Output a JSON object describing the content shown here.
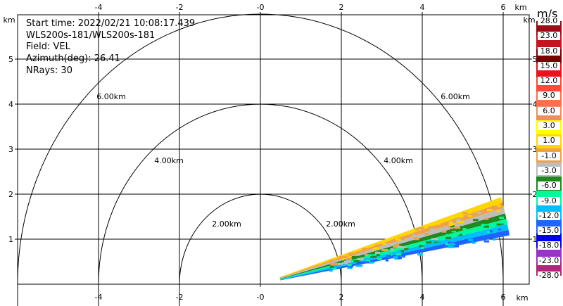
{
  "info": {
    "start_time": "Start time: 2022/02/21 10:08:17.439",
    "volume": "WLS200s-181/WLS200s-181",
    "field": "Field: VEL",
    "azimuth": "Azimuth(deg): 26.41",
    "nrays": "NRays: 30"
  },
  "axes": {
    "x_ticks": [
      "-4",
      "-2",
      "-0",
      "2",
      "4",
      "6"
    ],
    "x_tick_values": [
      -4,
      -2,
      0,
      2,
      4,
      6
    ],
    "y_ticks": [
      "1",
      "2",
      "3",
      "4",
      "5"
    ],
    "y_tick_values": [
      1,
      2,
      3,
      4,
      5
    ],
    "x_unit": "km",
    "y_unit": "km"
  },
  "range_rings": [
    {
      "radius_km": 2,
      "label": "2.00km"
    },
    {
      "radius_km": 4,
      "label": "4.00km"
    },
    {
      "radius_km": 6,
      "label": "6.00km"
    }
  ],
  "colorbar": {
    "unit": "m/s",
    "labels": [
      "28.0",
      "23.0",
      "18.0",
      "15.0",
      "12.0",
      "9.0",
      "6.0",
      "3.0",
      "1.0",
      "-1.0",
      "-3.0",
      "-6.0",
      "-9.0",
      "-12.0",
      "-15.0",
      "-18.0",
      "-23.0",
      "-28.0"
    ],
    "colors": [
      "#9c0c14",
      "#c8141e",
      "#7a0000",
      "#e8131b",
      "#ff4a3a",
      "#ff6e4f",
      "#f08e63",
      "#ffff00",
      "#ffd600",
      "#f0a04a",
      "#bdbdbd",
      "#1e8a1e",
      "#00fa9a",
      "#00bfff",
      "#1e64ff",
      "#0000ee",
      "#9932cc",
      "#b0287a"
    ]
  },
  "sweep": {
    "range_km": [
      0.5,
      6.25
    ],
    "azimuth_deg": [
      72,
      80
    ],
    "color_sequence": [
      "#1e64ff",
      "#00bfff",
      "#00fa9a",
      "#1e8a1e",
      "#bdbdbd",
      "#f0a04a",
      "#ffd600"
    ]
  }
}
